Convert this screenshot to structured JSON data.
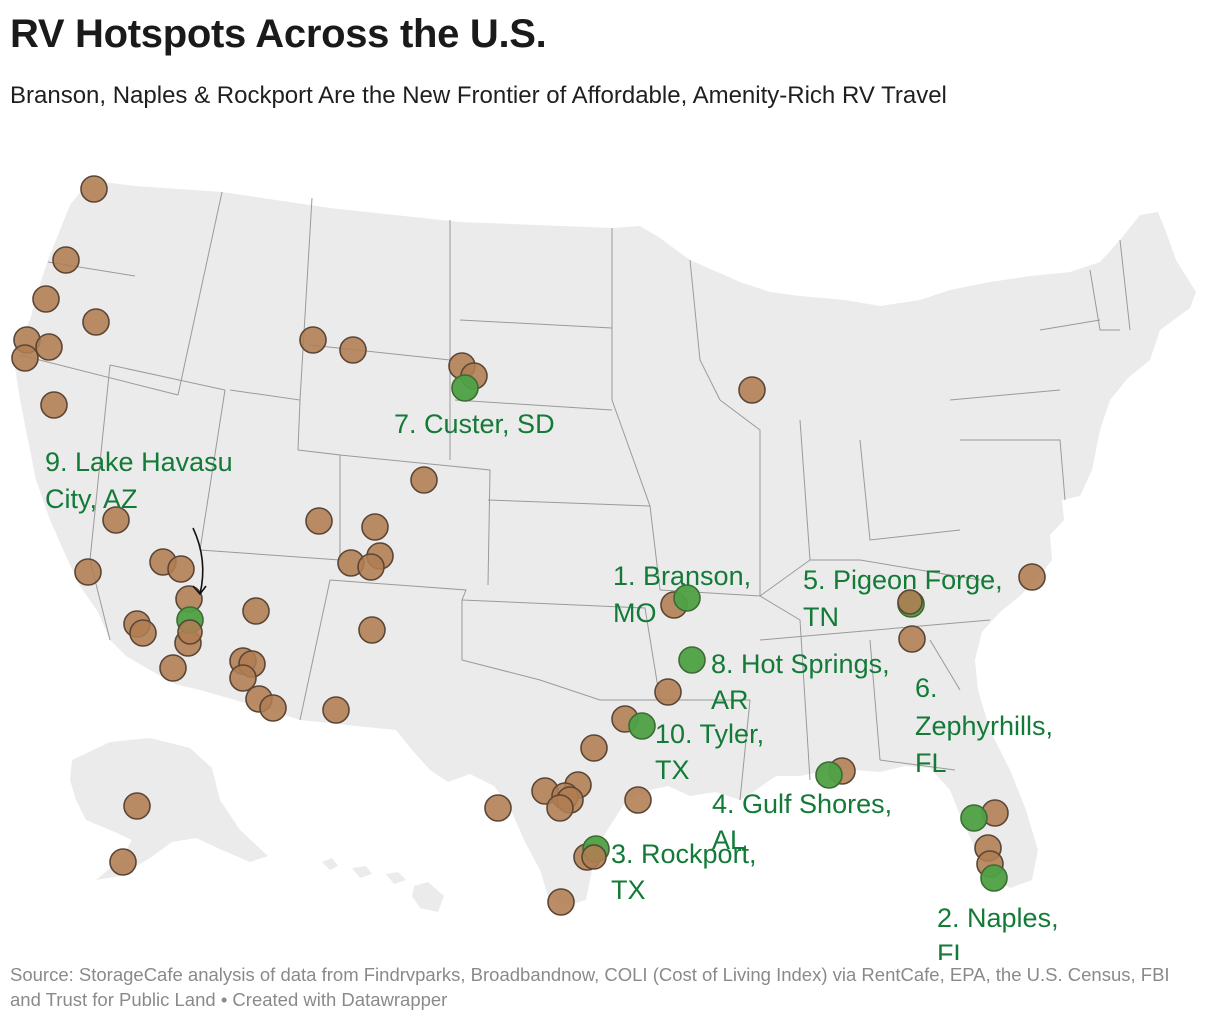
{
  "header": {
    "title": "RV Hotspots Across the U.S.",
    "subtitle": "Branson, Naples & Rockport Are the New Frontier of Affordable, Amenity-Rich RV Travel"
  },
  "colors": {
    "top_ten": "#4ea145",
    "other": "#b07d52",
    "label": "#137a37",
    "land": "#ebebeb",
    "border": "#9a9a9a"
  },
  "top_ten_labels": [
    {
      "rank": 1,
      "lines": [
        "1. Branson,",
        "MO"
      ]
    },
    {
      "rank": 2,
      "lines": [
        "2. Naples,",
        "FL"
      ]
    },
    {
      "rank": 3,
      "lines": [
        "3. Rockport,",
        "TX"
      ]
    },
    {
      "rank": 4,
      "lines": [
        "4. Gulf Shores,",
        "AL"
      ]
    },
    {
      "rank": 5,
      "lines": [
        "5. Pigeon Forge,",
        "TN"
      ]
    },
    {
      "rank": 6,
      "lines": [
        "6.",
        "Zephyrhills,",
        "FL"
      ]
    },
    {
      "rank": 7,
      "lines": [
        "7. Custer, SD"
      ]
    },
    {
      "rank": 8,
      "lines": [
        "8. Hot Springs,",
        "AR"
      ]
    },
    {
      "rank": 9,
      "lines": [
        "9. Lake Havasu",
        "City, AZ"
      ]
    },
    {
      "rank": 10,
      "lines": [
        "10. Tyler,",
        "TX"
      ]
    }
  ],
  "footer": {
    "source": "Source: StorageCafe analysis of data from Findrvparks, Broadbandnow, COLI (Cost of Living Index) via RentCafe, EPA, the U.S. Census, FBI and Trust for Public Land • Created with Datawrapper"
  }
}
